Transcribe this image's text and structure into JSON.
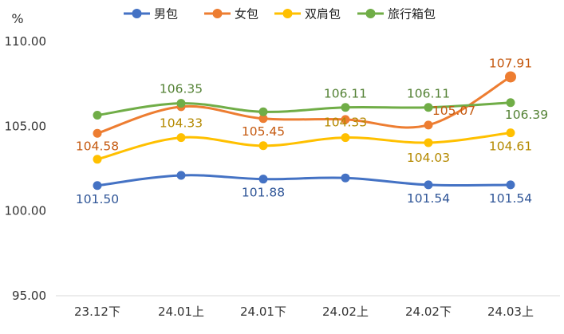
{
  "chart_data": {
    "type": "line",
    "y_unit": "%",
    "ylim": [
      95,
      110
    ],
    "yticks": [
      "95.00",
      "100.00",
      "105.00",
      "110.00"
    ],
    "categories": [
      "23.12下",
      "24.01上",
      "24.01下",
      "24.02上",
      "24.02下",
      "24.03上"
    ],
    "grid": false,
    "legend_position": "top",
    "series": [
      {
        "name": "男包",
        "color": "#4472c4",
        "label_color": "#2f5597",
        "values": [
          101.5,
          102.1,
          101.88,
          101.95,
          101.54,
          101.54
        ],
        "labels": [
          "101.50",
          null,
          "101.88",
          null,
          "101.54",
          "101.54"
        ]
      },
      {
        "name": "女包",
        "color": "#ed7d31",
        "label_color": "#c55a11",
        "values": [
          104.58,
          106.15,
          105.45,
          105.4,
          105.07,
          107.91
        ],
        "labels": [
          "104.58",
          null,
          "105.45",
          null,
          "105.07",
          "107.91"
        ]
      },
      {
        "name": "双肩包",
        "color": "#ffc000",
        "label_color": "#b48900",
        "values": [
          103.05,
          104.33,
          103.85,
          104.33,
          104.03,
          104.61
        ],
        "labels": [
          null,
          "104.33",
          null,
          "104.33",
          "104.03",
          "104.61"
        ]
      },
      {
        "name": "旅行箱包",
        "color": "#70ad47",
        "label_color": "#548235",
        "values": [
          105.65,
          106.35,
          105.85,
          106.11,
          106.11,
          106.39
        ],
        "labels": [
          null,
          "106.35",
          null,
          "106.11",
          "106.11",
          "106.39"
        ]
      }
    ]
  }
}
